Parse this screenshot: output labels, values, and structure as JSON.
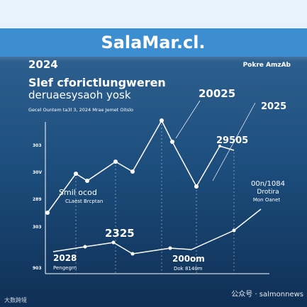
{
  "header": {
    "title": "SalaMar.cl.",
    "corner": "Pokre AmzAb"
  },
  "headline": {
    "year": "2024",
    "line1": "Slef cforictlungweren",
    "line2": "deruaesysaoh yosk",
    "note": "Gecel Ountem ta3l 3, 2024 Mrae Jemet Oitslo"
  },
  "axis_labels": [
    "303",
    "30V",
    "289",
    "303",
    "903"
  ],
  "annotations": [
    {
      "title": "20025"
    },
    {
      "title": "2025"
    },
    {
      "title": "29505"
    },
    {
      "title": "Smil ocod",
      "subtitle": "CLaest Brcptan"
    },
    {
      "title": "00n/1084",
      "subtitle": "Drotira",
      "note": "Mon Oanet"
    },
    {
      "title": "2325"
    },
    {
      "title": "2028",
      "subtitle": "Pengegrn"
    },
    {
      "title": "200om",
      "subtitle": "Dok 8140m"
    }
  ],
  "watermarks": {
    "left": "大数跨境",
    "right": "公众号 · salmonnews"
  }
}
